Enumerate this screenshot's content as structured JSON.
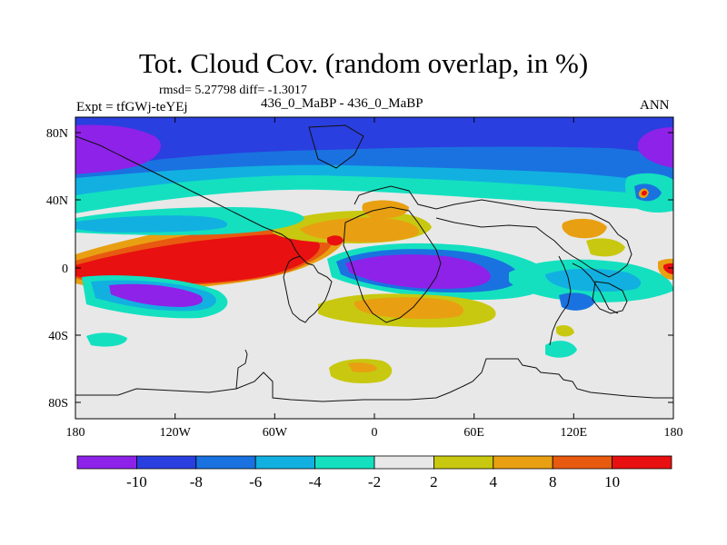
{
  "title": "Tot. Cloud Cov. (random overlap, in %)",
  "stats": "rmsd= 5.27798 diff= -1.3017",
  "expt": "Expt = tfGWj-teYEj",
  "subtitle": "436_0_MaBP - 436_0_MaBP",
  "season": "ANN",
  "lat_ticks": [
    {
      "label": "80N",
      "lat": 80
    },
    {
      "label": "40N",
      "lat": 40
    },
    {
      "label": "0",
      "lat": 0
    },
    {
      "label": "40S",
      "lat": -40
    },
    {
      "label": "80S",
      "lat": -80
    }
  ],
  "lon_ticks": [
    {
      "label": "180",
      "lon": -180
    },
    {
      "label": "120W",
      "lon": -120
    },
    {
      "label": "60W",
      "lon": -60
    },
    {
      "label": "0",
      "lon": 0
    },
    {
      "label": "60E",
      "lon": 60
    },
    {
      "label": "120E",
      "lon": 120
    },
    {
      "label": "180",
      "lon": 180
    }
  ],
  "colorbar": {
    "labels": [
      "-10",
      "-8",
      "-6",
      "-4",
      "-2",
      "2",
      "4",
      "8",
      "10"
    ],
    "colors": [
      "#8e22e8",
      "#2a3fe0",
      "#1a72e0",
      "#12b0e0",
      "#14e0c0",
      "#e8e8e8",
      "#c8c810",
      "#e8a012",
      "#e85a10",
      "#e81010"
    ]
  }
}
